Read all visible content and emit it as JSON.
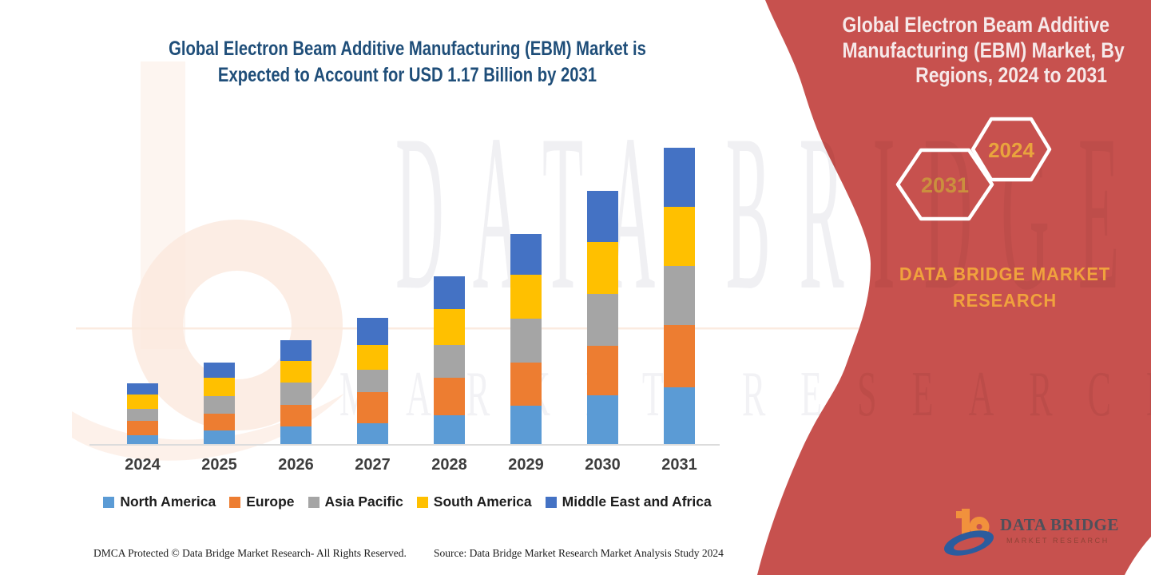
{
  "left": {
    "title_line1": "Global Electron Beam Additive Manufacturing (EBM) Market is",
    "title_line2": "Expected to Account for USD 1.17 Billion by 2031",
    "footer_left": "DMCA Protected © Data Bridge Market Research-  All Rights Reserved.",
    "footer_source": "Source: Data Bridge Market Research  Market Analysis Study 2024"
  },
  "watermark": {
    "row1": "DATA BRIDGE",
    "row2": "MARKET RESEARCH"
  },
  "panel": {
    "bg_color": "#C7514E",
    "title_line1": "Global Electron Beam Additive",
    "title_line2": "Manufacturing (EBM) Market, By",
    "title_line3": "Regions, 2024 to 2031",
    "hex_left_year": "2031",
    "hex_right_year": "2024",
    "brand_line1": "DATA BRIDGE MARKET",
    "brand_line2": "RESEARCH",
    "logo_text": "DATA BRIDGE",
    "logo_subtext": "MARKET RESEARCH"
  },
  "chart_data": {
    "type": "stacked-bar",
    "title": "Global Electron Beam Additive Manufacturing (EBM) Market is Expected to Account for USD 1.17 Billion by 2031",
    "unit": "USD billion",
    "categories": [
      "2024",
      "2025",
      "2026",
      "2027",
      "2028",
      "2029",
      "2030",
      "2031"
    ],
    "series": [
      {
        "name": "North America",
        "color": "#5B9BD5",
        "values": [
          0.041,
          0.06,
          0.076,
          0.087,
          0.12,
          0.158,
          0.196,
          0.23
        ]
      },
      {
        "name": "Europe",
        "color": "#ED7D31",
        "values": [
          0.055,
          0.066,
          0.083,
          0.123,
          0.146,
          0.169,
          0.195,
          0.243
        ]
      },
      {
        "name": "Asia Pacific",
        "color": "#A5A5A5",
        "values": [
          0.049,
          0.067,
          0.089,
          0.086,
          0.128,
          0.172,
          0.205,
          0.233
        ]
      },
      {
        "name": "South America",
        "color": "#FFC000",
        "values": [
          0.055,
          0.073,
          0.083,
          0.099,
          0.141,
          0.172,
          0.202,
          0.23
        ]
      },
      {
        "name": "Middle East and Africa",
        "color": "#4472C4",
        "values": [
          0.044,
          0.059,
          0.081,
          0.105,
          0.128,
          0.159,
          0.202,
          0.234
        ]
      }
    ],
    "annotation_total_2031": "USD 1.17 Billion",
    "ylim": [
      0,
      1.25
    ],
    "gridlines": false,
    "legend_position": "bottom"
  }
}
